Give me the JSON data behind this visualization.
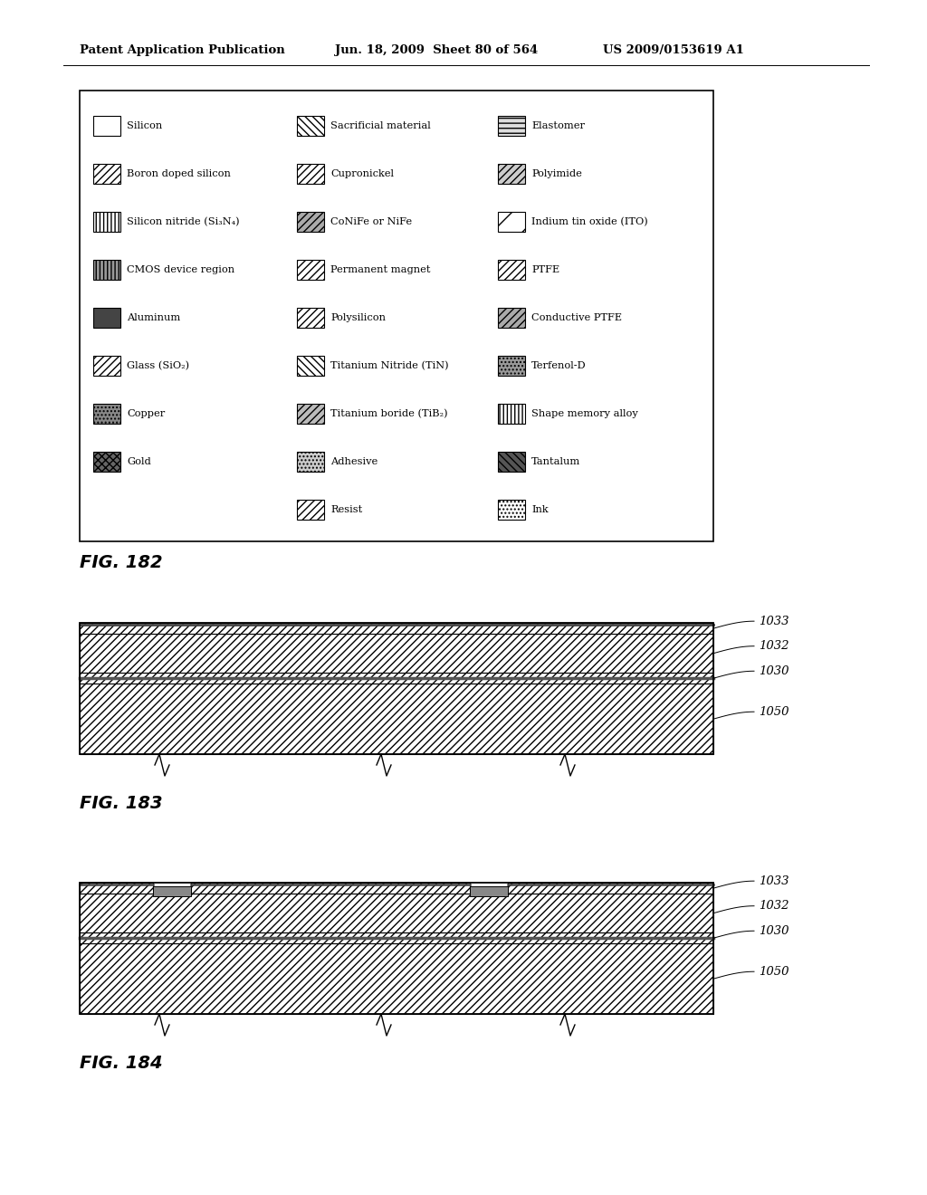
{
  "header_left": "Patent Application Publication",
  "header_mid": "Jun. 18, 2009  Sheet 80 of 564",
  "header_right": "US 2009/0153619 A1",
  "fig182_label": "FIG. 182",
  "fig183_label": "FIG. 183",
  "fig184_label": "FIG. 184",
  "legend_col1_labels": [
    "Silicon",
    "Boron doped silicon",
    "Silicon nitride (Si₃N₄)",
    "CMOS device region",
    "Aluminum",
    "Glass (SiO₂)",
    "Copper",
    "Gold"
  ],
  "legend_col2_labels": [
    "Sacrificial material",
    "Cupronickel",
    "CoNiFe or NiFe",
    "Permanent magnet",
    "Polysilicon",
    "Titanium Nitride (TiN)",
    "Titanium boride (TiB₂)",
    "Adhesive",
    "Resist"
  ],
  "legend_col3_labels": [
    "Elastomer",
    "Polyimide",
    "Indium tin oxide (ITO)",
    "PTFE",
    "Conductive PTFE",
    "Terfenol-D",
    "Shape memory alloy",
    "Tantalum",
    "Ink"
  ],
  "fig183_labels": [
    "1033",
    "1032",
    "1030",
    "1050"
  ],
  "fig184_labels": [
    "1033",
    "1032",
    "1030",
    "1050"
  ],
  "bg_color": "#ffffff"
}
